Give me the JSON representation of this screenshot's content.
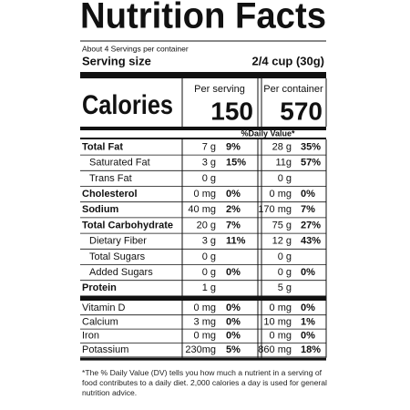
{
  "header": {
    "title": "Nutrition Facts",
    "servings": "About 4 Servings per container",
    "serving_size_label": "Serving size",
    "serving_size": "2/4 cup (30g)"
  },
  "calories": {
    "label": "Calories",
    "per_serving_label": "Per serving",
    "per_serving": 150,
    "per_container_label": "Per container",
    "per_container": 570
  },
  "daily_value_label": "%Daily Value*",
  "nutrients": [
    {
      "name": "Total Fat",
      "style": "main",
      "serving": "7 g",
      "serving_dv": "9%",
      "container": "28 g",
      "container_dv": "35%"
    },
    {
      "name": "Saturated Fat",
      "style": "sub",
      "serving": "3 g",
      "serving_dv": "15%",
      "container": "11g",
      "container_dv": "57%"
    },
    {
      "name": "Trans Fat",
      "style": "sub",
      "serving": "0 g",
      "container": "0 g"
    },
    {
      "name": "Cholesterol",
      "style": "main",
      "serving": "0 mg",
      "serving_dv": "0%",
      "container": "0 mg",
      "container_dv": "0%"
    },
    {
      "name": "Sodium",
      "style": "main",
      "serving": "40 mg",
      "serving_dv": "2%",
      "container": "170 mg",
      "container_dv": "7%"
    },
    {
      "name": "Total Carbohydrate",
      "style": "main",
      "serving": "20 g",
      "serving_dv": "7%",
      "container": "75 g",
      "container_dv": "27%"
    },
    {
      "name": "Dietary Fiber",
      "style": "sub",
      "serving": "3 g",
      "serving_dv": "11%",
      "container": "12 g",
      "container_dv": "43%"
    },
    {
      "name": "Total Sugars",
      "style": "sub",
      "serving": "0 g",
      "container": "0 g"
    },
    {
      "name": "Added Sugars",
      "style": "sub",
      "serving": "0 g",
      "serving_dv": "0%",
      "container": "0 g",
      "container_dv": "0%"
    },
    {
      "name": "Protein",
      "style": "main",
      "serving": "1 g",
      "container": "5 g"
    }
  ],
  "vitamins": [
    {
      "name": "Vitamin D",
      "serving": "0 mg",
      "serving_dv": "0%",
      "container": "0 mg",
      "container_dv": "0%"
    },
    {
      "name": "Calcium",
      "serving": "3 mg",
      "serving_dv": "0%",
      "container": "10 mg",
      "container_dv": "1%"
    },
    {
      "name": "Iron",
      "serving": "0 mg",
      "serving_dv": "0%",
      "container": "0 mg",
      "container_dv": "0%"
    },
    {
      "name": "Potassium",
      "serving": "230mg",
      "serving_dv": "5%",
      "container": "860 mg",
      "container_dv": "18%"
    }
  ],
  "footnote": "*The % Daily Value (DV) tells you how much a nutrient in a serving of food contributes to a daily diet. 2,000 calories a day is used for general nutrition advice."
}
